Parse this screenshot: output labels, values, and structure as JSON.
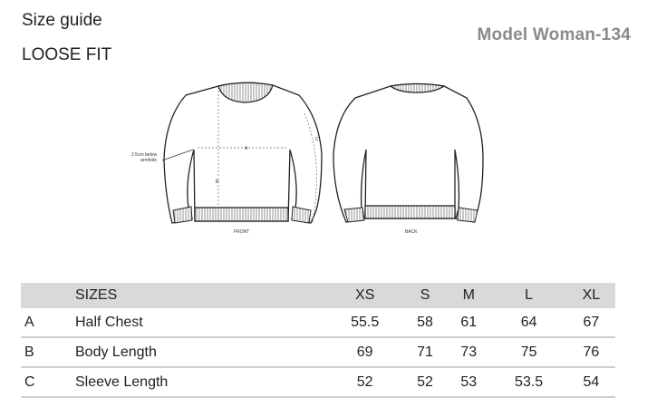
{
  "header": {
    "title": "Size guide",
    "fit": "LOOSE FIT",
    "model": "Model Woman-134"
  },
  "diagram": {
    "front_label": "FRONT",
    "back_label": "BACK",
    "measure_note_line1": "2.5cm below",
    "measure_note_line2": "armhole",
    "marker_a": "A",
    "marker_b": "B",
    "marker_c": "C"
  },
  "table": {
    "header_blank": "",
    "header_label": "SIZES",
    "sizes": [
      "XS",
      "S",
      "M",
      "L",
      "XL"
    ],
    "rows": [
      {
        "code": "A",
        "name": "Half Chest",
        "values": [
          "55.5",
          "58",
          "61",
          "64",
          "67"
        ]
      },
      {
        "code": "B",
        "name": "Body Length",
        "values": [
          "69",
          "71",
          "73",
          "75",
          "76"
        ]
      },
      {
        "code": "C",
        "name": "Sleeve Length",
        "values": [
          "52",
          "52",
          "53",
          "53.5",
          "54"
        ]
      }
    ]
  }
}
